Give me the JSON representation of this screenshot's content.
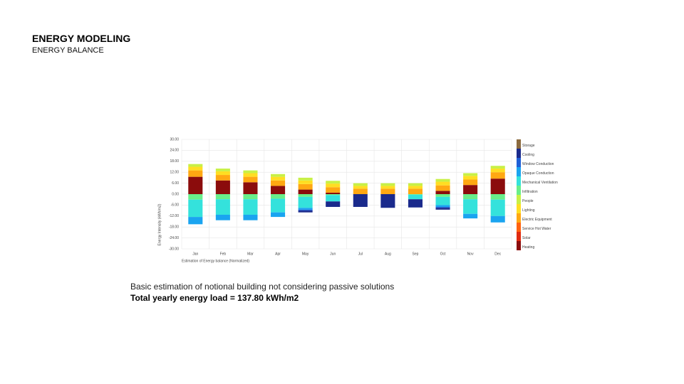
{
  "header": {
    "title": "ENERGY MODELING",
    "subtitle": "ENERGY BALANCE"
  },
  "caption": {
    "text": "Basic estimation of notional building not considering passive solutions",
    "total": "Total yearly energy load = 137.80 kWh/m2"
  },
  "chart_data": {
    "type": "bar",
    "stacked": true,
    "grid": true,
    "y_label": "Energy Intensity (kWh/m2)",
    "x_label": "Estimation of Energy balance (Normalized)",
    "categories": [
      "Jan",
      "Feb",
      "Mar",
      "Apr",
      "May",
      "Jun",
      "Jul",
      "Aug",
      "Sep",
      "Oct",
      "Nov",
      "Dec"
    ],
    "ylim": [
      -30,
      30
    ],
    "yticks": [
      {
        "value": 30,
        "label": "30.00"
      },
      {
        "value": 24,
        "label": "24.00"
      },
      {
        "value": 18,
        "label": "18.00"
      },
      {
        "value": 12,
        "label": "12.00"
      },
      {
        "value": 6,
        "label": "6.00"
      },
      {
        "value": 0,
        "label": "0.00"
      },
      {
        "value": -6,
        "label": "-6.00"
      },
      {
        "value": -12,
        "label": "-12.00"
      },
      {
        "value": -18,
        "label": "-18.00"
      },
      {
        "value": -24,
        "label": "-24.00"
      },
      {
        "value": -30,
        "label": "-30.00"
      }
    ],
    "series": [
      {
        "name": "Heating",
        "color": "#8b0c0c",
        "values": [
          9.5,
          7.5,
          6.5,
          4.5,
          2.5,
          0.8,
          0,
          0,
          0,
          1.8,
          5,
          8.5
        ]
      },
      {
        "name": "Solar",
        "color": "#e02a10",
        "values": [
          0,
          0,
          0,
          0,
          0,
          0,
          0,
          0,
          0,
          0,
          0,
          0
        ]
      },
      {
        "name": "Service Hot Water",
        "color": "#ff6210",
        "values": [
          0,
          0,
          0,
          0,
          0,
          0,
          0,
          0,
          0,
          0,
          0,
          0
        ]
      },
      {
        "name": "Electric Equipment",
        "color": "#ffa812",
        "values": [
          3.5,
          3,
          3,
          3,
          3,
          3,
          3,
          3,
          3,
          3,
          3,
          3.5
        ]
      },
      {
        "name": "Lighting",
        "color": "#ffde22",
        "values": [
          2,
          2,
          2,
          2,
          2,
          2,
          1.5,
          1.5,
          1.5,
          2,
          2,
          2
        ]
      },
      {
        "name": "People",
        "color": "#c8f046",
        "values": [
          1.5,
          1.5,
          1.5,
          1.5,
          1.5,
          1.5,
          1.5,
          1.5,
          1.5,
          1.5,
          1.5,
          1.5
        ]
      },
      {
        "name": "Infiltration",
        "color": "#6aee8a",
        "values": [
          -3,
          -2.8,
          -2.8,
          -2.5,
          -1.5,
          -0.5,
          0,
          0,
          -0.3,
          -1.5,
          -2.8,
          -3
        ]
      },
      {
        "name": "Mechanical Ventilation",
        "color": "#34e2dc",
        "values": [
          -9.5,
          -8.5,
          -8.5,
          -7.5,
          -6,
          -3.5,
          0,
          0,
          -2.5,
          -4.5,
          -8,
          -9
        ]
      },
      {
        "name": "Opaque Conduction",
        "color": "#1aa4f0",
        "values": [
          -4,
          -3,
          -3,
          -2.5,
          -1,
          0,
          0,
          0,
          0,
          -1,
          -2.5,
          -3.5
        ]
      },
      {
        "name": "Window Conduction",
        "color": "#1f5fd6",
        "values": [
          0,
          0,
          0,
          0,
          -0.5,
          0,
          0,
          0,
          0,
          -0.5,
          0,
          0
        ]
      },
      {
        "name": "Cooling",
        "color": "#1a2a8c",
        "values": [
          0,
          0,
          0,
          0,
          -1,
          -3,
          -7,
          -7.5,
          -4.5,
          -1,
          0,
          0
        ]
      },
      {
        "name": "Storage",
        "color": "#8b6a3e",
        "values": [
          0,
          0,
          0,
          0,
          0,
          0,
          0,
          0,
          0,
          0,
          0,
          0
        ]
      }
    ]
  }
}
